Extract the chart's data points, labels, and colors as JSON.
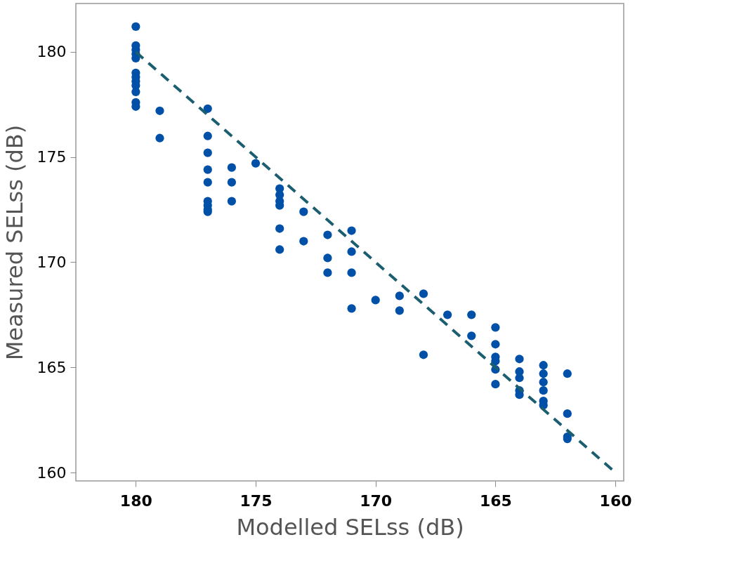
{
  "chart_data": {
    "type": "scatter",
    "xlabel": "Modelled SELss (dB)",
    "ylabel": "Measured SELss (dB)",
    "xlim": [
      182.5,
      159.65
    ],
    "ylim": [
      159.6,
      182.3
    ],
    "xticks": [
      180,
      175,
      170,
      165,
      160
    ],
    "yticks": [
      160,
      165,
      170,
      175,
      180
    ],
    "grid": false,
    "marker": "circle",
    "series": [
      {
        "color": "#0050a8",
        "x": [
          180,
          180,
          180,
          180,
          180,
          180,
          180,
          180,
          180,
          180,
          180,
          180,
          179,
          179,
          177,
          177,
          177,
          177,
          177,
          177,
          177,
          177,
          177,
          176,
          176,
          176,
          175,
          174,
          174,
          174,
          174,
          174,
          174,
          173,
          173,
          172,
          172,
          172,
          171,
          171,
          171,
          171,
          170,
          169,
          169,
          168,
          168,
          167,
          166,
          166,
          165,
          165,
          165,
          165,
          165,
          165,
          164,
          164,
          164,
          164,
          164,
          163,
          163,
          163,
          163,
          163,
          163,
          162,
          162,
          162,
          162
        ],
        "values": [
          181.2,
          180.3,
          180.1,
          179.9,
          179.7,
          179.0,
          178.8,
          178.6,
          178.4,
          178.1,
          177.6,
          177.4,
          177.2,
          175.9,
          177.3,
          176.0,
          175.2,
          174.4,
          173.8,
          172.9,
          172.7,
          172.5,
          172.4,
          174.5,
          173.8,
          172.9,
          174.7,
          173.5,
          173.2,
          172.9,
          172.7,
          171.6,
          170.6,
          172.4,
          171.0,
          171.3,
          170.2,
          169.5,
          171.5,
          170.5,
          169.5,
          167.8,
          168.2,
          168.4,
          167.7,
          168.5,
          165.6,
          167.5,
          167.5,
          166.5,
          166.9,
          166.1,
          165.5,
          165.3,
          164.9,
          164.2,
          165.4,
          164.8,
          164.5,
          163.9,
          163.7,
          165.1,
          164.7,
          164.3,
          163.9,
          163.4,
          163.2,
          164.7,
          162.8,
          161.7,
          161.6
        ]
      },
      {
        "type": "line",
        "color": "#1b5e70",
        "line_style": "dashed",
        "marker": "none",
        "x": [
          180,
          160
        ],
        "values": [
          180,
          160
        ]
      }
    ]
  }
}
